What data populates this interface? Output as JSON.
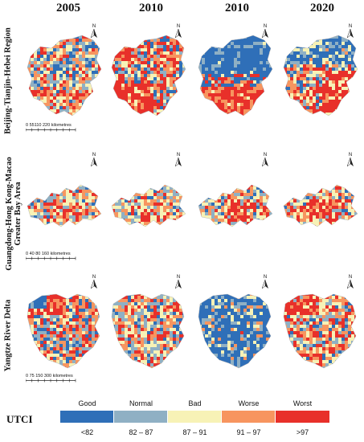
{
  "years": [
    "2005",
    "2010",
    "2010",
    "2020"
  ],
  "regions": [
    {
      "label": "Beijing-Tianjin-Hebei Region",
      "label_lines": [
        "Beijing-Tianjin-Hebei Region"
      ],
      "scale": "0  55110    220 kilometres"
    },
    {
      "label": "Guangdong-Hong Kong-Macao Greater Bay Area",
      "label_lines": [
        "Guangdong-Hong Kong-Macao",
        "Greater Bay Area"
      ],
      "scale": "0   40  80       160 kilometres"
    },
    {
      "label": "Yangtze River Delta",
      "label_lines": [
        "Yangtze River Delta"
      ],
      "scale": "0  75 150     300 kilometres"
    }
  ],
  "north_label": "N",
  "legend": {
    "title": "UTCI",
    "classes": [
      {
        "name": "Good",
        "range": "<82",
        "color": "#2f6fb8"
      },
      {
        "name": "Normal",
        "range": "82 – 87",
        "color": "#8fb0c4"
      },
      {
        "name": "Bad",
        "range": "87 – 91",
        "color": "#f7f2b6"
      },
      {
        "name": "Worse",
        "range": "91 – 97",
        "color": "#f7955f"
      },
      {
        "name": "Worst",
        "range": ">97",
        "color": "#e8302a"
      }
    ]
  }
}
